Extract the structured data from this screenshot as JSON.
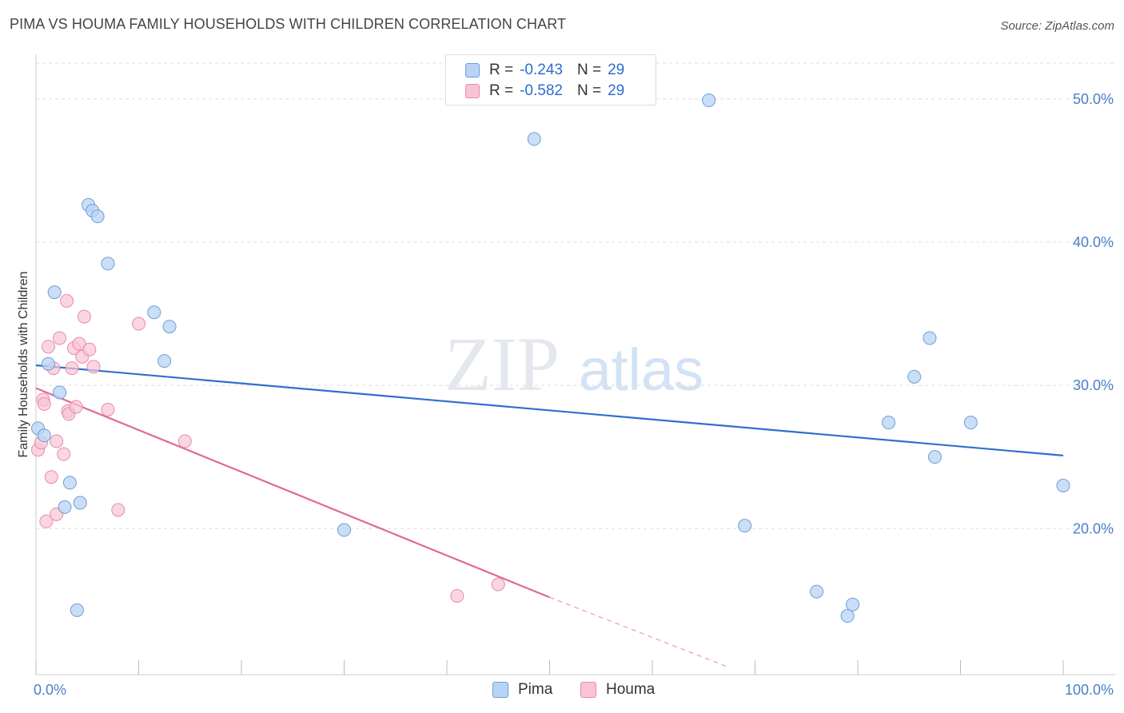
{
  "title": "PIMA VS HOUMA FAMILY HOUSEHOLDS WITH CHILDREN CORRELATION CHART",
  "source": "Source: ZipAtlas.com",
  "watermark": {
    "zip": "ZIP",
    "atlas": "atlas"
  },
  "legend": {
    "pima": {
      "r_label": "R =",
      "r_value": "-0.243",
      "n_label": "N =",
      "n_value": "29"
    },
    "houma": {
      "r_label": "R =",
      "r_value": "-0.582",
      "n_label": "N =",
      "n_value": "29"
    }
  },
  "colors": {
    "pima_fill": "#b9d3f4",
    "pima_stroke": "#6b9edb",
    "pima_line": "#2f6fcf",
    "houma_fill": "#f8c4d4",
    "houma_stroke": "#e98aa8",
    "houma_line": "#e0689a",
    "grid": "#dddddd",
    "axis_tick": "#4a7fc9"
  },
  "chart_data": {
    "type": "scatter",
    "title": "PIMA VS HOUMA FAMILY HOUSEHOLDS WITH CHILDREN CORRELATION CHART",
    "xlabel": "",
    "ylabel": "Family Households with Children",
    "xlim": [
      0,
      100
    ],
    "ylim": [
      9.8,
      53.0
    ],
    "x_tick_labels": [
      "0.0%",
      "100.0%"
    ],
    "y_ticks": [
      20,
      30,
      40,
      50
    ],
    "y_tick_labels": [
      "20.0%",
      "30.0%",
      "40.0%",
      "50.0%"
    ],
    "series": [
      {
        "name": "Pima",
        "points": [
          [
            0.2,
            27.0
          ],
          [
            0.8,
            26.5
          ],
          [
            1.2,
            31.5
          ],
          [
            1.8,
            36.5
          ],
          [
            2.3,
            29.5
          ],
          [
            2.8,
            21.5
          ],
          [
            3.3,
            23.2
          ],
          [
            4.0,
            14.3
          ],
          [
            4.3,
            21.8
          ],
          [
            5.1,
            42.6
          ],
          [
            5.5,
            42.2
          ],
          [
            6.0,
            41.8
          ],
          [
            7.0,
            38.5
          ],
          [
            11.5,
            35.1
          ],
          [
            12.5,
            31.7
          ],
          [
            13.0,
            34.1
          ],
          [
            30.0,
            19.9
          ],
          [
            48.5,
            47.2
          ],
          [
            65.5,
            49.9
          ],
          [
            69.0,
            20.2
          ],
          [
            76.0,
            15.6
          ],
          [
            79.0,
            13.9
          ],
          [
            79.5,
            14.7
          ],
          [
            83.0,
            27.4
          ],
          [
            85.5,
            30.6
          ],
          [
            87.0,
            33.3
          ],
          [
            87.5,
            25.0
          ],
          [
            91.0,
            27.4
          ],
          [
            100.0,
            23.0
          ]
        ],
        "trend": {
          "x": [
            0,
            100
          ],
          "y": [
            31.4,
            25.1
          ]
        }
      },
      {
        "name": "Houma",
        "points": [
          [
            0.2,
            25.5
          ],
          [
            0.5,
            26.0
          ],
          [
            0.7,
            29.0
          ],
          [
            0.8,
            28.7
          ],
          [
            1.0,
            20.5
          ],
          [
            1.2,
            32.7
          ],
          [
            1.5,
            23.6
          ],
          [
            1.7,
            31.2
          ],
          [
            2.0,
            26.1
          ],
          [
            2.0,
            21.0
          ],
          [
            2.3,
            33.3
          ],
          [
            2.7,
            25.2
          ],
          [
            3.0,
            35.9
          ],
          [
            3.1,
            28.2
          ],
          [
            3.2,
            28.0
          ],
          [
            3.5,
            31.2
          ],
          [
            3.7,
            32.6
          ],
          [
            3.9,
            28.5
          ],
          [
            4.2,
            32.9
          ],
          [
            4.5,
            32.0
          ],
          [
            4.7,
            34.8
          ],
          [
            5.2,
            32.5
          ],
          [
            5.6,
            31.3
          ],
          [
            7.0,
            28.3
          ],
          [
            8.0,
            21.3
          ],
          [
            10.0,
            34.3
          ],
          [
            14.5,
            26.1
          ],
          [
            41.0,
            15.3
          ],
          [
            45.0,
            16.1
          ]
        ],
        "trend": {
          "x": [
            0,
            50
          ],
          "y": [
            29.8,
            15.2
          ]
        },
        "trend_extension": {
          "x": [
            50,
            67.5
          ],
          "y": [
            15.2,
            10.3
          ]
        }
      }
    ]
  },
  "bottom_legend": {
    "pima": "Pima",
    "houma": "Houma"
  }
}
